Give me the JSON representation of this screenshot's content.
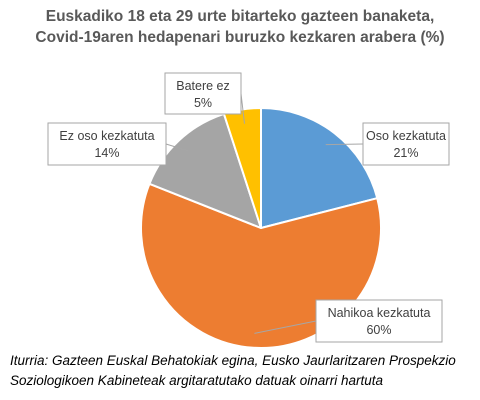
{
  "chart_data": {
    "type": "pie",
    "title_lines": [
      "Euskadiko 18 eta 29 urte bitarteko gazteen banaketa,",
      "Covid-19aren hedapenari buruzko kezkaren arabera (%)"
    ],
    "slices": [
      {
        "label": "Oso kezkatuta",
        "value": 21,
        "display": "21%",
        "color": "#5b9bd5"
      },
      {
        "label": "Nahikoa kezkatuta",
        "value": 60,
        "display": "60%",
        "color": "#ed7d31"
      },
      {
        "label": "Ez oso kezkatuta",
        "value": 14,
        "display": "14%",
        "color": "#a5a5a5"
      },
      {
        "label": "Batere ez",
        "value": 5,
        "display": "5%",
        "color": "#ffc000"
      }
    ],
    "legend": "none",
    "data_labels": "callout"
  },
  "source": {
    "lines": [
      "Iturria: Gazteen Euskal Behatokiak egina, Eusko Jaurlaritzaren Prospekzio",
      "Soziologikoen Kabineteak argitaratutako datuak oinarri hartuta"
    ]
  }
}
